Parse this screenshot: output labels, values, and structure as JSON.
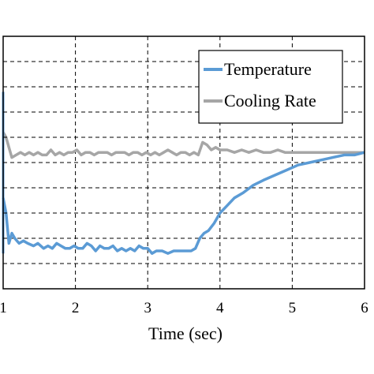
{
  "chart_data": {
    "type": "line",
    "title": "",
    "xlabel": "Time (sec)",
    "ylabel": "",
    "xlim": [
      1,
      6
    ],
    "ylim": [
      0,
      1
    ],
    "x_ticks": [
      "1",
      "2",
      "3",
      "4",
      "5",
      "6"
    ],
    "grid": true,
    "legend_position": "top-right",
    "series": [
      {
        "name": "Temperature",
        "color": "#5b9bd5",
        "x": [
          1.0,
          1.04,
          1.08,
          1.12,
          1.16,
          1.22,
          1.28,
          1.34,
          1.42,
          1.48,
          1.56,
          1.62,
          1.68,
          1.74,
          1.8,
          1.86,
          1.92,
          1.98,
          2.04,
          2.1,
          2.16,
          2.22,
          2.28,
          2.34,
          2.4,
          2.46,
          2.52,
          2.58,
          2.64,
          2.7,
          2.76,
          2.82,
          2.88,
          2.94,
          3.0,
          3.06,
          3.12,
          3.2,
          3.28,
          3.36,
          3.44,
          3.52,
          3.6,
          3.66,
          3.72,
          3.78,
          3.84,
          3.92,
          4.0,
          4.1,
          4.2,
          4.32,
          4.46,
          4.6,
          4.76,
          4.92,
          5.08,
          5.24,
          5.4,
          5.56,
          5.72,
          5.86,
          6.0
        ],
        "y": [
          0.36,
          0.3,
          0.18,
          0.22,
          0.2,
          0.18,
          0.19,
          0.18,
          0.17,
          0.18,
          0.16,
          0.17,
          0.16,
          0.18,
          0.17,
          0.16,
          0.16,
          0.17,
          0.16,
          0.16,
          0.18,
          0.17,
          0.15,
          0.17,
          0.16,
          0.16,
          0.17,
          0.15,
          0.16,
          0.15,
          0.16,
          0.15,
          0.17,
          0.16,
          0.16,
          0.14,
          0.15,
          0.15,
          0.14,
          0.15,
          0.15,
          0.15,
          0.15,
          0.16,
          0.2,
          0.22,
          0.23,
          0.26,
          0.3,
          0.33,
          0.36,
          0.38,
          0.41,
          0.43,
          0.45,
          0.47,
          0.49,
          0.5,
          0.51,
          0.52,
          0.53,
          0.53,
          0.54
        ]
      },
      {
        "name": "Cooling Rate",
        "color": "#a6a6a6",
        "x": [
          1.0,
          1.04,
          1.08,
          1.12,
          1.18,
          1.24,
          1.3,
          1.36,
          1.42,
          1.48,
          1.54,
          1.6,
          1.66,
          1.72,
          1.78,
          1.84,
          1.9,
          1.96,
          2.02,
          2.08,
          2.14,
          2.2,
          2.26,
          2.32,
          2.38,
          2.44,
          2.5,
          2.56,
          2.62,
          2.68,
          2.74,
          2.8,
          2.86,
          2.92,
          2.98,
          3.04,
          3.1,
          3.16,
          3.22,
          3.28,
          3.34,
          3.4,
          3.46,
          3.52,
          3.58,
          3.64,
          3.7,
          3.76,
          3.82,
          3.88,
          3.94,
          4.0,
          4.1,
          4.2,
          4.3,
          4.4,
          4.5,
          4.6,
          4.7,
          4.8,
          4.9,
          5.0,
          5.2,
          5.4,
          5.6,
          5.8,
          6.0
        ],
        "y": [
          0.62,
          0.6,
          0.56,
          0.52,
          0.53,
          0.54,
          0.53,
          0.54,
          0.53,
          0.54,
          0.53,
          0.53,
          0.55,
          0.53,
          0.54,
          0.53,
          0.54,
          0.54,
          0.55,
          0.53,
          0.54,
          0.54,
          0.53,
          0.54,
          0.54,
          0.54,
          0.53,
          0.54,
          0.54,
          0.54,
          0.53,
          0.54,
          0.54,
          0.53,
          0.54,
          0.53,
          0.54,
          0.53,
          0.54,
          0.55,
          0.54,
          0.53,
          0.54,
          0.54,
          0.53,
          0.54,
          0.53,
          0.58,
          0.57,
          0.55,
          0.56,
          0.55,
          0.55,
          0.54,
          0.55,
          0.54,
          0.55,
          0.54,
          0.54,
          0.55,
          0.54,
          0.54,
          0.54,
          0.54,
          0.54,
          0.54,
          0.54
        ]
      }
    ]
  }
}
